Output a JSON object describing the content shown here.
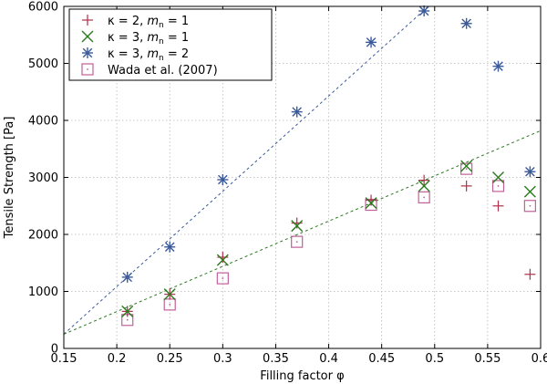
{
  "chart_data": {
    "type": "scatter",
    "title": "",
    "xlabel": "Filling factor φ",
    "ylabel": "Tensile Strength [Pa]",
    "xlim": [
      0.15,
      0.6
    ],
    "ylim": [
      0,
      6000
    ],
    "xticks": [
      0.15,
      0.2,
      0.25,
      0.3,
      0.35,
      0.4,
      0.45,
      0.5,
      0.55,
      0.6
    ],
    "yticks": [
      0,
      1000,
      2000,
      3000,
      4000,
      5000,
      6000
    ],
    "xtick_labels": [
      "0.15",
      "0.2",
      "0.25",
      "0.3",
      "0.35",
      "0.4",
      "0.45",
      "0.5",
      "0.55",
      "0.6"
    ],
    "ytick_labels": [
      "0",
      "1000",
      "2000",
      "3000",
      "4000",
      "5000",
      "6000"
    ],
    "grid": true,
    "legend_position": "top-left",
    "series": [
      {
        "name": "κ = 2, mₙ = 1",
        "legend_parts": [
          "κ = 2, ",
          "m",
          "n",
          " = 1"
        ],
        "marker": "plus",
        "color": "#b0304a",
        "x": [
          0.21,
          0.25,
          0.3,
          0.37,
          0.44,
          0.49,
          0.53,
          0.56,
          0.59
        ],
        "y": [
          650,
          950,
          1600,
          2200,
          2600,
          2950,
          2850,
          2500,
          1300
        ]
      },
      {
        "name": "κ = 3, mₙ = 1",
        "legend_parts": [
          "κ = 3, ",
          "m",
          "n",
          " = 1"
        ],
        "marker": "x",
        "color": "#2a7a1e",
        "x": [
          0.21,
          0.25,
          0.3,
          0.37,
          0.44,
          0.49,
          0.53,
          0.56,
          0.59
        ],
        "y": [
          650,
          950,
          1550,
          2150,
          2550,
          2850,
          3200,
          3000,
          2750
        ]
      },
      {
        "name": "κ = 3, mₙ = 2",
        "legend_parts": [
          "κ = 3, ",
          "m",
          "n",
          " = 2"
        ],
        "marker": "asterisk",
        "color": "#3b5a9a",
        "x": [
          0.21,
          0.25,
          0.3,
          0.37,
          0.44,
          0.49,
          0.53,
          0.56,
          0.59
        ],
        "y": [
          1250,
          1780,
          2960,
          4150,
          5370,
          5920,
          5700,
          4950,
          3100
        ]
      },
      {
        "name": "Wada et al. (2007)",
        "legend_parts": [
          "Wada et al. (2007)",
          "",
          "",
          ""
        ],
        "marker": "square",
        "color": "#c0609a",
        "x": [
          0.21,
          0.25,
          0.3,
          0.37,
          0.44,
          0.49,
          0.53,
          0.56,
          0.59
        ],
        "y": [
          500,
          770,
          1230,
          1870,
          2520,
          2650,
          3150,
          2850,
          2500
        ]
      }
    ],
    "fit_lines": [
      {
        "name": "fit-blue",
        "color": "#3b5a9a",
        "x": [
          0.15,
          0.5
        ],
        "y": [
          250,
          6100
        ]
      },
      {
        "name": "fit-green",
        "color": "#2a7a1e",
        "x": [
          0.15,
          0.6
        ],
        "y": [
          250,
          3820
        ]
      }
    ]
  }
}
